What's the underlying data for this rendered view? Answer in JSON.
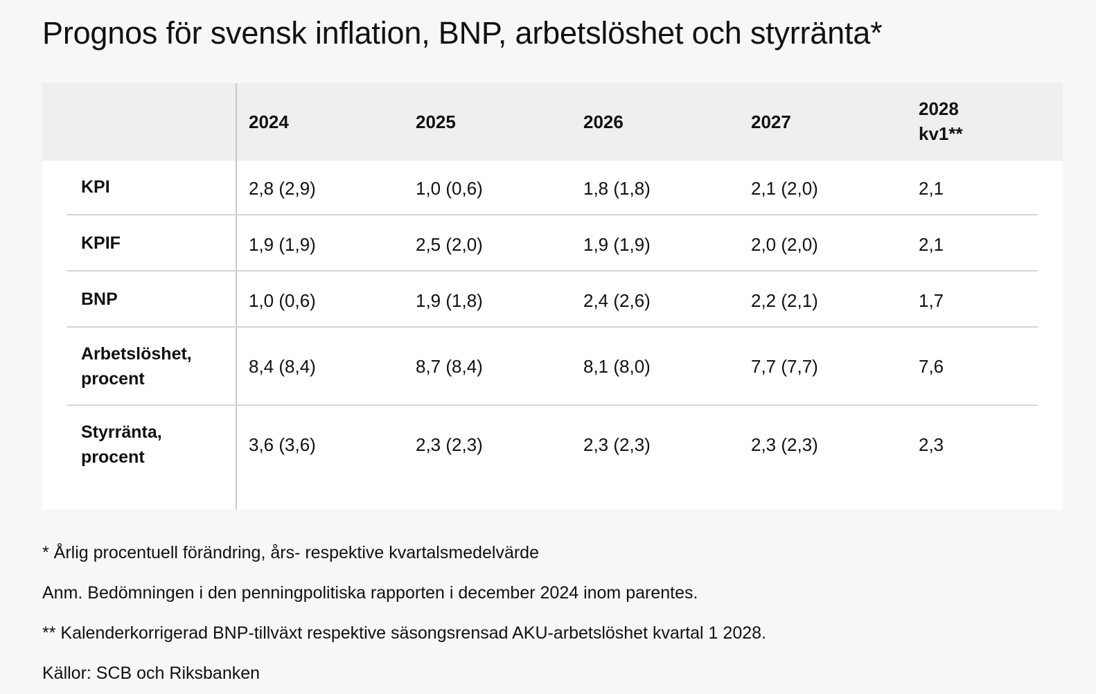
{
  "title": "Prognos för svensk inflation, BNP, arbetslöshet och styrränta*",
  "table": {
    "headers": [
      "2024",
      "2025",
      "2026",
      "2027",
      "2028 kv1**"
    ],
    "header_last_lines": [
      "2028",
      "kv1**"
    ],
    "rows": [
      {
        "label_lines": [
          "KPI"
        ],
        "values": [
          "2,8 (2,9)",
          "1,0 (0,6)",
          "1,8 (1,8)",
          "2,1 (2,0)",
          "2,1"
        ]
      },
      {
        "label_lines": [
          "KPIF"
        ],
        "values": [
          "1,9 (1,9)",
          "2,5 (2,0)",
          "1,9 (1,9)",
          "2,0 (2,0)",
          "2,1"
        ]
      },
      {
        "label_lines": [
          "BNP"
        ],
        "values": [
          "1,0 (0,6)",
          "1,9 (1,8)",
          "2,4 (2,6)",
          "2,2 (2,1)",
          "1,7"
        ]
      },
      {
        "label_lines": [
          "Arbetslöshet,",
          "procent"
        ],
        "values": [
          "8,4 (8,4)",
          "8,7 (8,4)",
          "8,1 (8,0)",
          "7,7 (7,7)",
          "7,6"
        ]
      },
      {
        "label_lines": [
          "Styrränta,",
          "procent"
        ],
        "values": [
          "3,6 (3,6)",
          "2,3 (2,3)",
          "2,3 (2,3)",
          "2,3 (2,3)",
          "2,3"
        ]
      }
    ]
  },
  "notes": [
    "* Årlig procentuell förändring, års- respektive kvartalsmedelvärde",
    "Anm. Bedömningen i den penningpolitiska rapporten i december 2024 inom parentes.",
    "** Kalenderkorrigerad BNP-tillväxt respektive säsongsrensad AKU-arbetslöshet kvartal 1 2028.",
    "Källor: SCB och Riksbanken"
  ]
}
